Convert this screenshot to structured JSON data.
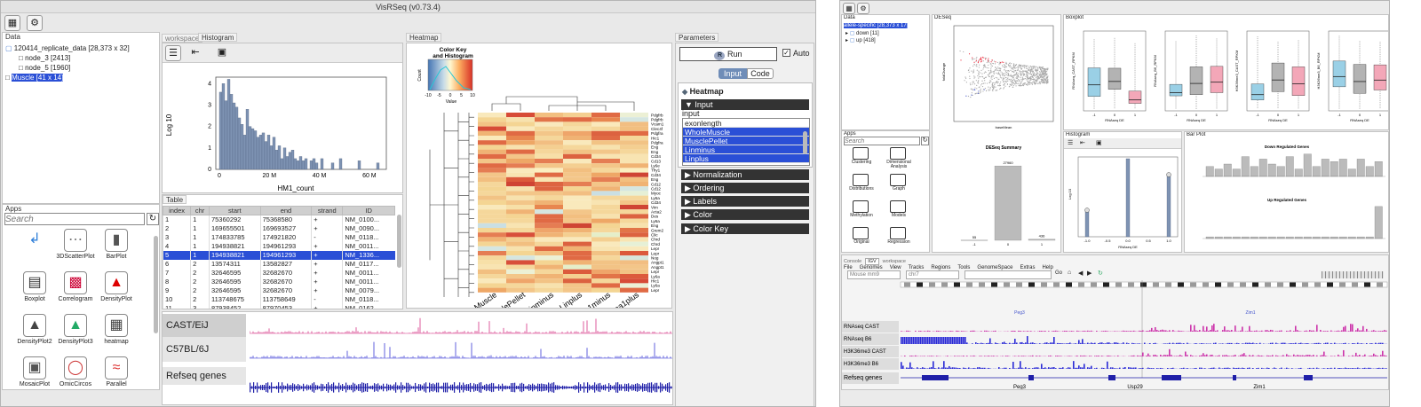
{
  "left_window": {
    "title": "VisRSeq (v0.73.4)",
    "data_panel": {
      "label": "Data",
      "items": [
        {
          "label": "120414_replicate_data [28,373 x 32]"
        },
        {
          "label": "node_3 [2413]"
        },
        {
          "label": "node_5 [1960]"
        },
        {
          "label": "Muscle [41 x 14]"
        }
      ]
    },
    "apps_panel": {
      "label": "Apps",
      "search_placeholder": "Search",
      "apps": [
        "",
        "3DScatterPlot",
        "BarPlot",
        "Boxplot",
        "Correlogram",
        "DensityPlot",
        "DensityPlot2",
        "DensityPlot3",
        "heatmap",
        "MosaicPlot",
        "OmicCircos",
        "Parallel"
      ]
    },
    "tabs": {
      "workspace": "workspace",
      "histogram": "Histogram",
      "heatmap": "Heatmap",
      "parameters": "Parameters"
    },
    "histogram": {
      "ylabel": "Log 10",
      "xlabel": "HM1_count",
      "xticks": [
        "0",
        "20 M",
        "40 M",
        "60 M"
      ],
      "yticks": [
        "0",
        "1",
        "2",
        "3",
        "4"
      ],
      "values": [
        3.6,
        4.0,
        3.2,
        4.2,
        3.5,
        3.1,
        2.9,
        2.4,
        2.1,
        1.6,
        2.8,
        2.0,
        1.9,
        1.8,
        1.5,
        1.6,
        1.7,
        1.3,
        1.6,
        1.1,
        1.5,
        0.9,
        1.1,
        0.5,
        1.0,
        0.6,
        0.8,
        0.9,
        0.5,
        0.4,
        0.6,
        0.4,
        0.5,
        0.0,
        0.4,
        0.5,
        0.3,
        0.0,
        0.5,
        0.0,
        0.0,
        0.0,
        0.3,
        0.0,
        0.0,
        0.5,
        0.0,
        0.0,
        0.0,
        0.0,
        0.0,
        0.0,
        0.4,
        0.0,
        0.0,
        0.0,
        0.0,
        0.0,
        0.0,
        0.3
      ]
    },
    "table": {
      "label": "Table",
      "columns": [
        "index",
        "chr",
        "start",
        "end",
        "strand",
        "ID"
      ],
      "rows": [
        [
          "1",
          "1",
          "75360292",
          "75368580",
          "+",
          "NM_0100..."
        ],
        [
          "2",
          "1",
          "169655501",
          "169693527",
          "+",
          "NM_0090..."
        ],
        [
          "3",
          "1",
          "174833785",
          "174921820",
          "-",
          "NM_0118..."
        ],
        [
          "4",
          "1",
          "194938821",
          "194961293",
          "+",
          "NM_0011..."
        ],
        [
          "5",
          "1",
          "194938821",
          "194961293",
          "+",
          "NM_1336..."
        ],
        [
          "6",
          "2",
          "13574311",
          "13582827",
          "+",
          "NM_0117..."
        ],
        [
          "7",
          "2",
          "32646595",
          "32682670",
          "+",
          "NM_0011..."
        ],
        [
          "8",
          "2",
          "32646595",
          "32682670",
          "+",
          "NM_0011..."
        ],
        [
          "9",
          "2",
          "32646595",
          "32682670",
          "+",
          "NM_0079..."
        ],
        [
          "10",
          "2",
          "113748675",
          "113758649",
          "-",
          "NM_0118..."
        ],
        [
          "11",
          "3",
          "87938452",
          "87970453",
          "+",
          "NM_0162..."
        ]
      ],
      "selected_row": 4
    },
    "heatmap": {
      "color_key_title": "Color Key and Histogram",
      "value_label": "Value",
      "count_label": "Count",
      "key_ticks": [
        "-10",
        "-5",
        "0",
        "5",
        "10"
      ],
      "columns": [
        "WholeMuscle",
        "MusclePellet",
        "Linminus",
        "Linplus",
        "LinSca1minus",
        "LinSca1plus"
      ],
      "genes": [
        "Pdgfrb",
        "Pdgfrb",
        "Vcam1",
        "Clec4f",
        "Pdgfra",
        "Hic1",
        "Pdgfra",
        "Eng",
        "Eng",
        "Cd34",
        "Cd13",
        "Ly6e",
        "Thy1",
        "Cd34",
        "Eng",
        "Cd12",
        "Cd12",
        "Myoc",
        "Ly6a",
        "Cd34",
        "Vim",
        "Acta2",
        "Des",
        "Ly6a",
        "Eng",
        "Grem2",
        "Clic",
        "Chrd",
        "Chrd",
        "Lepr",
        "Lepr",
        "Nog",
        "Angpt1",
        "Angpt1",
        "Lepr",
        "Ly6a",
        "Hic1",
        "Ly6a",
        "Lepr"
      ],
      "colors": [
        "#f5d79b",
        "#f3c689",
        "#f5d79b",
        "#f7e0a8",
        "#f5d79b",
        "#f4d593",
        "#f3c689",
        "#f2bf80",
        "#f0b374",
        "#f3c689",
        "#f2be82",
        "#f5d79b",
        "#efa56a",
        "#f0b374",
        "#f2bf80",
        "#f5d79b",
        "#f4cf91",
        "#f3c689",
        "#e57d53",
        "#e8864f",
        "#f0b374",
        "#f2c385",
        "#eea766",
        "#f2c385",
        "#cf4434",
        "#d84f3a",
        "#dc5a3c",
        "#e06a44",
        "#dc6240",
        "#e57d53",
        "#e06a44",
        "#f4d593",
        "#f7e2ae",
        "#f9e9bc",
        "#ecf0d5",
        "#e5eec9",
        "#f0b374",
        "#e06a44",
        "#d74b37",
        "#dd6441",
        "#e27448",
        "#f0b374",
        "#f5d79b",
        "#f8e4b2",
        "#f2c385",
        "#fae9bb",
        "#f8e4b2",
        "#e6f0d6",
        "#cadfe3",
        "#d7e7dd",
        "#f3c689",
        "#f5d79b",
        "#f9e9bc",
        "#d5e6e1",
        "#bcd6e4",
        "#cbe0e0",
        "#f9e9bc",
        "#f8e4b2",
        "#fbeec0",
        "#f7e2ae",
        "#f5d79b",
        "#f4cf91",
        "#f7e2ae",
        "#f5d79b",
        "#f3c689",
        "#f2bf80",
        "#f2bf80",
        "#f0b374"
      ]
    },
    "parameters": {
      "run_label": "Run",
      "auto_label": "Auto",
      "tab_input": "Input",
      "tab_code": "Code",
      "heatmap_label": "Heatmap",
      "sections": [
        "Input",
        "Normalization",
        "Ordering",
        "Labels",
        "Color",
        "Color Key"
      ],
      "input_label": "input",
      "input_items": [
        "exonlength",
        "WholeMuscle",
        "MusclePellet",
        "Linminus",
        "Linplus"
      ],
      "selected_inputs": [
        1,
        2,
        3,
        4
      ]
    },
    "tracks": [
      {
        "label": "CAST/EiJ",
        "color": "#d63384"
      },
      {
        "label": "C57BL/6J",
        "color": "#3a3ad6"
      },
      {
        "label": "Refseq genes",
        "color": "#1f1fa8"
      }
    ]
  },
  "right_window": {
    "data_panel": {
      "label": "Data",
      "items": [
        {
          "label": "allele-specific [28,373 x 17]"
        },
        {
          "label": "down [11]"
        },
        {
          "label": "up [418]"
        }
      ]
    },
    "apps_panel": {
      "label": "Apps",
      "search_placeholder": "Search",
      "apps": [
        "Clustering",
        "Dimensional Analysis",
        "Distributions",
        "Graph",
        "Methylation",
        "Models",
        "Original",
        "Regression"
      ]
    },
    "deseq": {
      "tab": "DESeq",
      "scatter_xlabel": "baseMean",
      "scatter_ylabel": "foldChange",
      "summary_title": "DESeq Summary",
      "summary_categories": [
        "-1",
        "0",
        "1"
      ],
      "summary_values": [
        55,
        27960,
        436
      ],
      "summary_labels": [
        "55",
        "27960",
        "436"
      ]
    },
    "boxplot": {
      "tab": "Boxplot",
      "plots": [
        {
          "ylabel": "RNAseq_CAST_RPKM",
          "xlabel": "RNAseq DE",
          "colors": [
            "#9ad0e6",
            "#b3b3b3",
            "#f3a7b8"
          ]
        },
        {
          "ylabel": "RNAseq_B6_RPKM",
          "xlabel": "RNAseq DE",
          "colors": [
            "#9ad0e6",
            "#b3b3b3",
            "#f3a7b8"
          ]
        },
        {
          "ylabel": "H3K36me3_CAST_RPKM",
          "xlabel": "RNAseq DE",
          "colors": [
            "#9ad0e6",
            "#b3b3b3",
            "#f3a7b8"
          ]
        },
        {
          "ylabel": "H3K36me3_B6_RPKM",
          "xlabel": "RNAseq DE",
          "colors": [
            "#9ad0e6",
            "#b3b3b3",
            "#f3a7b8"
          ]
        }
      ],
      "categories": [
        "-1",
        "0",
        "1"
      ]
    },
    "histogram": {
      "tab": "Histogram",
      "xlabel": "RNAseq DE",
      "ylabel": "Log 10",
      "xticks": [
        "-1.0",
        "-0.5",
        "0.0",
        "0.5",
        "1.0"
      ]
    },
    "barplot": {
      "tab": "Bar Plot",
      "down_title": "Down Regulated Genes",
      "down_values": [
        0.4,
        0.3,
        0.5,
        0.3,
        0.8,
        0.4,
        0.7,
        0.5,
        0.4,
        0.8,
        0.3,
        0.9,
        0.4,
        0.7,
        0.6,
        0.7,
        0.3,
        0.7,
        0.4,
        0.6
      ],
      "up_title": "Up Regulated Genes",
      "up_values": [
        0.05,
        0.05,
        0.05,
        0.05,
        0.05,
        0.05,
        0.05,
        0.05,
        0.05,
        0.05,
        0.05,
        0.05,
        0.05,
        0.05,
        0.05,
        0.05,
        0.05,
        0.05,
        0.05,
        0.95
      ]
    },
    "igv": {
      "tabs": [
        "Console",
        "IGV",
        "workspace"
      ],
      "menu": [
        "File",
        "Genomes",
        "View",
        "Tracks",
        "Regions",
        "Tools",
        "GenomeSpace",
        "Extras",
        "Help"
      ],
      "genome": "Mouse mm9",
      "chrom": "chr7",
      "go_label": "Go",
      "tracks": [
        {
          "label": "RNAseq CAST",
          "color": "#cc33aa"
        },
        {
          "label": "RNAseq B6",
          "color": "#2a2ad6"
        },
        {
          "label": "H3K36me3 CAST",
          "color": "#cc33aa"
        },
        {
          "label": "H3K36me3 B6",
          "color": "#2a2ad6"
        }
      ],
      "gene_labels": [
        "Peg3",
        "Zim1"
      ],
      "refseq_label": "Refseq genes",
      "refseq_genes": [
        "Peg3",
        "Usp29",
        "Zim1"
      ]
    }
  }
}
